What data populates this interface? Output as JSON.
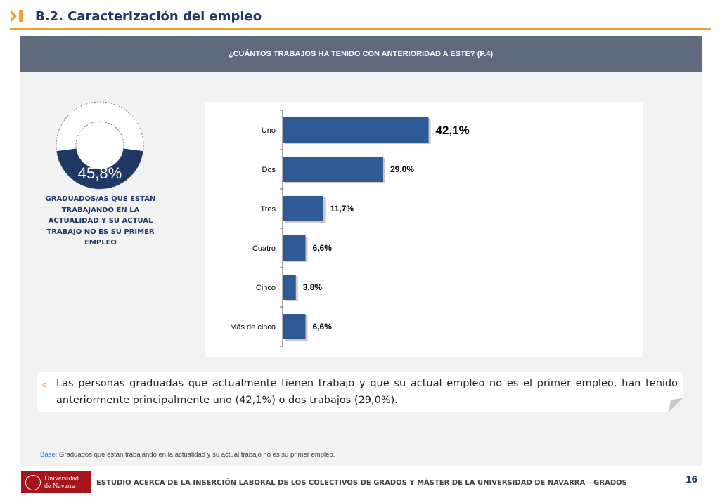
{
  "header": {
    "title": "B.2. Caracterización del empleo"
  },
  "question": "¿CUÁNTOS TRABAJOS HA TENIDO CON ANTERIORIDAD A ESTE? (P.4)",
  "donut": {
    "value": 45.8,
    "value_label": "45,8%",
    "caption": "GRADUADOS/AS QUE ESTÁN TRABAJANDO EN LA ACTUALIDAD Y SU ACTUAL TRABAJO NO ES SU PRIMER EMPLEO",
    "color": "#1f3864"
  },
  "chart_data": {
    "type": "bar",
    "orientation": "horizontal",
    "categories": [
      "Uno",
      "Dos",
      "Tres",
      "Cuatro",
      "Cinco",
      "Más de cinco"
    ],
    "values": [
      42.1,
      29.0,
      11.7,
      6.6,
      3.8,
      6.6
    ],
    "value_labels": [
      "42,1%",
      "29,0%",
      "11,7%",
      "6,6%",
      "3,8%",
      "6,6%"
    ],
    "xlim": [
      0,
      100
    ],
    "bar_color": "#305a94",
    "grid": false
  },
  "note": {
    "text": "Las personas graduadas que actualmente tienen trabajo y que su actual empleo no es el primer empleo, han tenido anteriormente principalmente uno (42,1%) o dos trabajos (29,0%)."
  },
  "base": {
    "label": "Base:",
    "text": " Graduados que están trabajando en la actualidad y su actual trabajo no es su primer empleo."
  },
  "footer": {
    "logo_line1": "Universidad",
    "logo_line2": "de Navarra",
    "text": "ESTUDIO ACERCA DE LA INSERCIÓN LABORAL DE LOS COLECTIVOS DE GRADOS Y MÁSTER DE LA UNIVERSIDAD DE NAVARRA – GRADOS",
    "page": "16"
  },
  "colors": {
    "accent": "#f0a030",
    "navy": "#1f3864",
    "question_bar": "#5f6b7c"
  }
}
